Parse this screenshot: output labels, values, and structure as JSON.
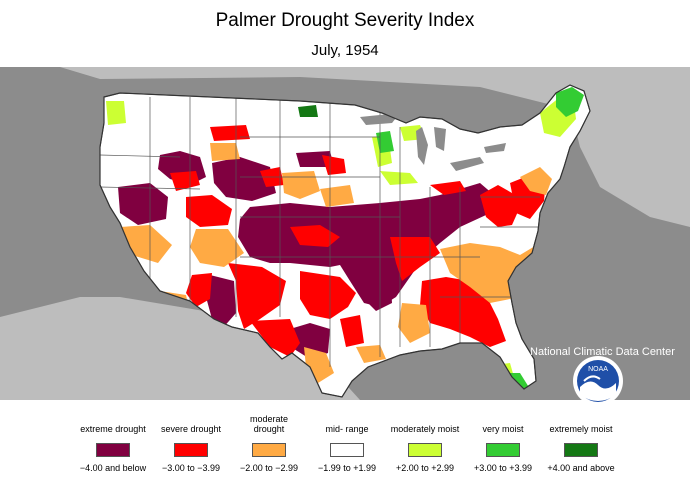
{
  "title": "Palmer Drought Severity Index",
  "subtitle": "July, 1954",
  "credit": "National Climatic Data Center",
  "logo_text": "NOAA",
  "legend": [
    {
      "label": "extreme drought",
      "range": "−4.00 and below",
      "color": "#800040"
    },
    {
      "label": "severe drought",
      "range": "−3.00 to −3.99",
      "color": "#ff0000"
    },
    {
      "label": "moderate drought",
      "range": "−2.00 to −2.99",
      "color": "#ffaa44"
    },
    {
      "label": "mid- range",
      "range": "−1.99 to +1.99",
      "color": "#ffffff"
    },
    {
      "label": "moderately moist",
      "range": "+2.00 to +2.99",
      "color": "#ccff33"
    },
    {
      "label": "very moist",
      "range": "+3.00 to +3.99",
      "color": "#33cc33"
    },
    {
      "label": "extremely moist",
      "range": "+4.00 and above",
      "color": "#147814"
    }
  ]
}
